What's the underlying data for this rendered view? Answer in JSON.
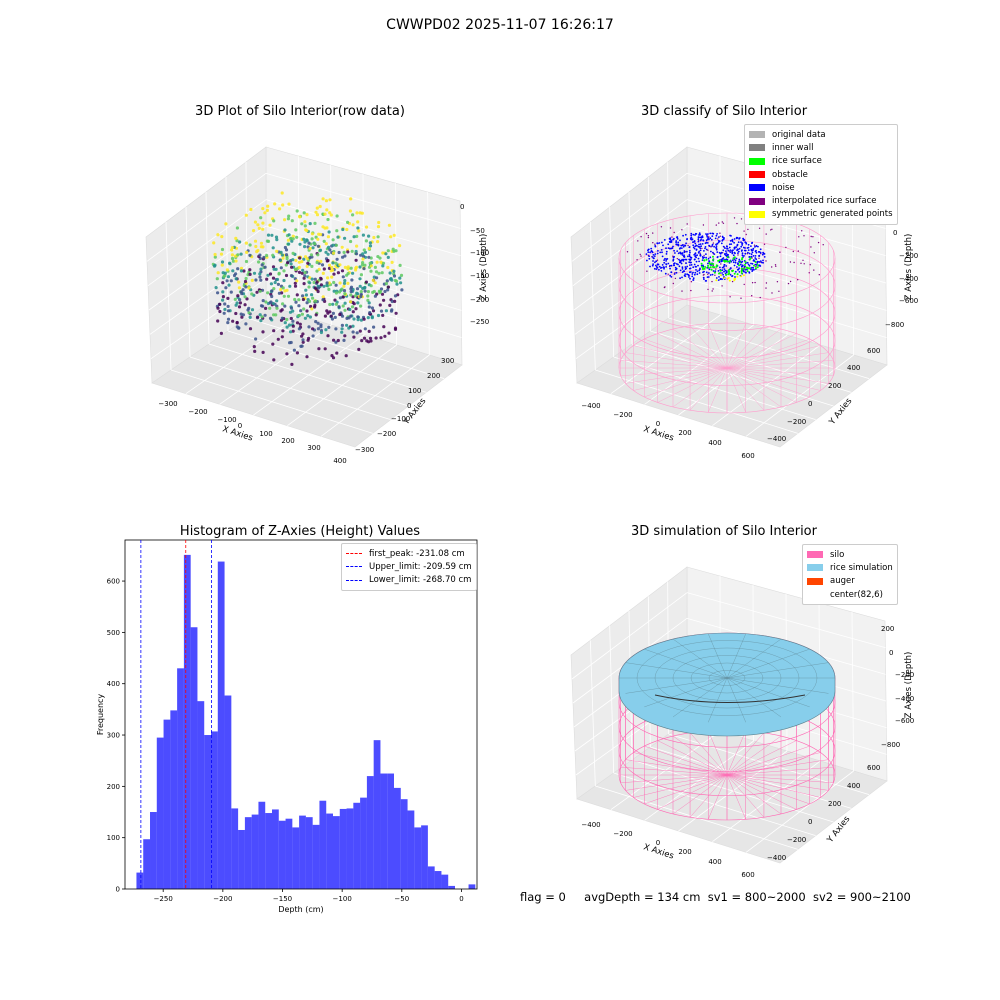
{
  "figure": {
    "suptitle": "CWWPD02 2025-11-07 16:26:17",
    "footer": {
      "flag": "flag = 0",
      "avg_depth": "avgDepth = 134 cm",
      "sv1": "sv1 = 800~2000",
      "sv2": "sv2 = 900~2100"
    }
  },
  "panels": {
    "raw": {
      "title": "3D Plot of Silo Interior(row data)",
      "xlabel": "X Axies",
      "ylabel": "Y Axies",
      "zlabel": "Z Axies (Depth)",
      "xticks": [
        "−300",
        "−200",
        "−100",
        "0",
        "100",
        "200",
        "300",
        "400"
      ],
      "yticks": [
        "−300",
        "−200",
        "−100",
        "0",
        "100",
        "200",
        "300"
      ],
      "zticks": [
        "0",
        "−50",
        "−100",
        "−150",
        "−200",
        "−250"
      ],
      "colormap": [
        "#440154",
        "#3b528b",
        "#21918c",
        "#5ec962",
        "#fde725"
      ]
    },
    "classify": {
      "title": "3D classify of Silo Interior",
      "xlabel": "X Axies",
      "ylabel": "Y Axies",
      "zlabel": "Z Axies (Depth)",
      "xticks": [
        "−400",
        "−200",
        "0",
        "200",
        "400",
        "600"
      ],
      "yticks": [
        "−400",
        "−200",
        "0",
        "200",
        "400",
        "600"
      ],
      "zticks": [
        "200",
        "0",
        "−200",
        "−400",
        "−600",
        "−800"
      ],
      "legend": [
        {
          "label": "original data",
          "color": "#b3b3b3"
        },
        {
          "label": "inner wall",
          "color": "#808080"
        },
        {
          "label": "rice surface",
          "color": "#00ff00"
        },
        {
          "label": "obstacle",
          "color": "#ff0000"
        },
        {
          "label": "noise",
          "color": "#0000ff"
        },
        {
          "label": "interpolated rice surface",
          "color": "#800080"
        },
        {
          "label": "symmetric generated points",
          "color": "#ffff00"
        }
      ]
    },
    "simulation": {
      "title": "3D simulation of Silo Interior",
      "xlabel": "X Axies",
      "ylabel": "Y Axies",
      "zlabel": "Z Axies (Depth)",
      "xticks": [
        "−400",
        "−200",
        "0",
        "200",
        "400",
        "600"
      ],
      "yticks": [
        "−400",
        "−200",
        "0",
        "200",
        "400",
        "600"
      ],
      "zticks": [
        "200",
        "0",
        "−200",
        "−400",
        "−600",
        "−800"
      ],
      "legend": [
        {
          "label": "silo",
          "color": "#ff69b4"
        },
        {
          "label": "rice simulation",
          "color": "#87ceeb"
        },
        {
          "label": "auger",
          "color": "#ff4500"
        },
        {
          "label": "center(82,6)",
          "color": ""
        }
      ]
    }
  },
  "chart_data": [
    {
      "type": "bar",
      "title": "Histogram of Z-Axies (Height) Values",
      "xlabel": "Depth (cm)",
      "ylabel": "Frequency",
      "bin_start": -272.4,
      "bin_width": 5.68,
      "values": [
        32,
        97,
        150,
        295,
        330,
        348,
        430,
        651,
        510,
        366,
        300,
        307,
        638,
        377,
        157,
        115,
        140,
        145,
        170,
        148,
        155,
        133,
        137,
        120,
        143,
        140,
        125,
        172,
        147,
        142,
        156,
        157,
        168,
        178,
        220,
        290,
        225,
        225,
        197,
        175,
        153,
        120,
        124,
        44,
        35,
        28,
        6,
        0,
        0,
        9
      ],
      "xlim": [
        -282,
        13
      ],
      "ylim": [
        0,
        680
      ],
      "xticks": [
        -250,
        -200,
        -150,
        -100,
        -50,
        0
      ],
      "yticks": [
        0,
        100,
        200,
        300,
        400,
        500,
        600
      ],
      "bar_color": "#0000ff",
      "vlines": [
        {
          "label": "first_peak: -231.08 cm",
          "x": -231.08,
          "color": "#ff0000"
        },
        {
          "label": "Upper_limit: -209.59 cm",
          "x": -209.59,
          "color": "#0000ff"
        },
        {
          "label": "Lower_limit: -268.70 cm",
          "x": -268.7,
          "color": "#0000ff"
        }
      ],
      "legend_position": "upper right"
    }
  ]
}
